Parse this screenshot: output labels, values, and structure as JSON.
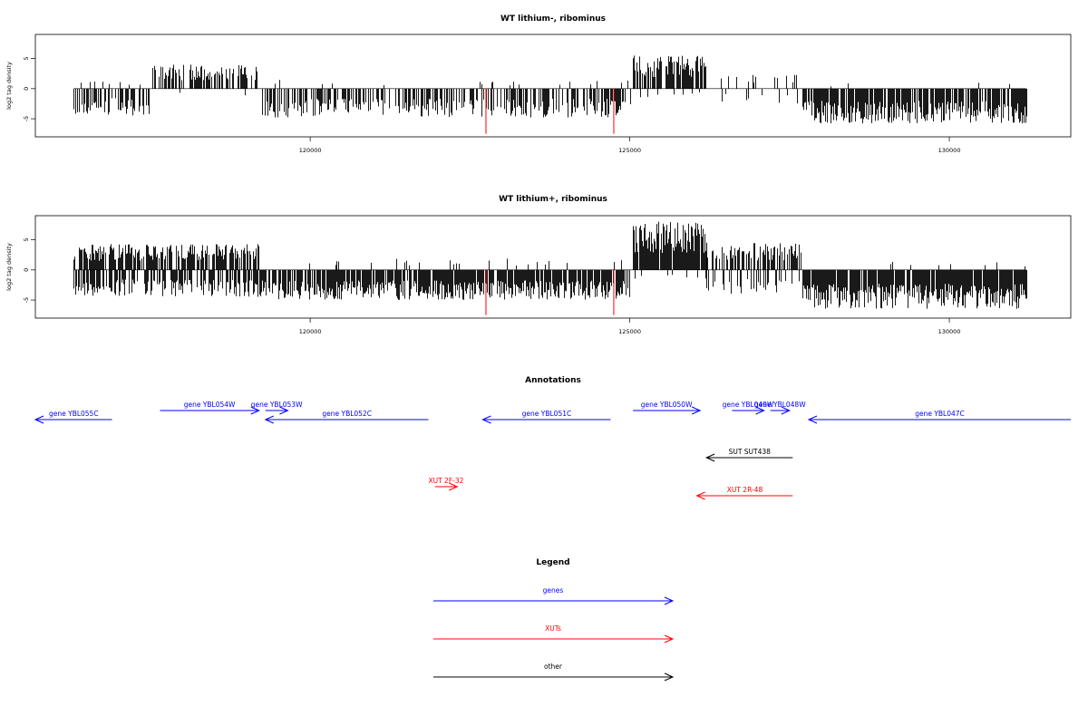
{
  "colors": {
    "gene": "#0000ff",
    "xut": "#ff0000",
    "other": "#000000",
    "bar": "#000000",
    "highlight": "#ff0000"
  },
  "chart_data": [
    {
      "type": "bar",
      "title": "WT lithium-, ribominus",
      "ylabel": "log2 tag density",
      "xlim": [
        115700,
        131900
      ],
      "ylim": [
        -8,
        9
      ],
      "x_ticks": [
        120000,
        125000,
        130000
      ],
      "y_ticks": [
        5,
        0,
        -5
      ],
      "segments": [
        {
          "x_start": 116300,
          "x_end": 117500,
          "pos_max": 1.5,
          "pos_density": 0.15,
          "neg_max": 4.5,
          "neg_density": 0.5
        },
        {
          "x_start": 117500,
          "x_end": 119200,
          "pos_max": 4.0,
          "pos_density": 0.6,
          "neg_max": 1.5,
          "neg_density": 0.05
        },
        {
          "x_start": 119200,
          "x_end": 125000,
          "pos_max": 1.5,
          "pos_density": 0.03,
          "neg_max": 4.8,
          "neg_density": 0.55
        },
        {
          "x_start": 125050,
          "x_end": 126200,
          "pos_max": 5.5,
          "pos_density": 0.75,
          "neg_max": 1.5,
          "neg_density": 0.05
        },
        {
          "x_start": 126200,
          "x_end": 127700,
          "pos_max": 2.5,
          "pos_density": 0.1,
          "neg_max": 2.5,
          "neg_density": 0.1
        },
        {
          "x_start": 127700,
          "x_end": 131200,
          "pos_max": 1.0,
          "pos_density": 0.03,
          "neg_max": 5.8,
          "neg_density": 0.85
        }
      ],
      "highlight_bars": [
        {
          "x": 122750,
          "y": -7.5
        },
        {
          "x": 124750,
          "y": -7.5
        }
      ]
    },
    {
      "type": "bar",
      "title": "WT lithium+, ribominus",
      "ylabel": "log2 tag density",
      "xlim": [
        115700,
        131900
      ],
      "ylim": [
        -8,
        9
      ],
      "x_ticks": [
        120000,
        125000,
        130000
      ],
      "y_ticks": [
        5,
        0,
        -5
      ],
      "segments": [
        {
          "x_start": 116300,
          "x_end": 119200,
          "pos_max": 4.3,
          "pos_density": 0.7,
          "neg_max": 4.5,
          "neg_density": 0.6
        },
        {
          "x_start": 119200,
          "x_end": 125000,
          "pos_max": 2.0,
          "pos_density": 0.05,
          "neg_max": 5.0,
          "neg_density": 0.85
        },
        {
          "x_start": 125050,
          "x_end": 126200,
          "pos_max": 8.0,
          "pos_density": 0.95,
          "neg_max": 1.5,
          "neg_density": 0.05
        },
        {
          "x_start": 126200,
          "x_end": 127700,
          "pos_max": 4.5,
          "pos_density": 0.6,
          "neg_max": 4.0,
          "neg_density": 0.3
        },
        {
          "x_start": 127700,
          "x_end": 131200,
          "pos_max": 1.5,
          "pos_density": 0.03,
          "neg_max": 6.5,
          "neg_density": 0.95
        }
      ],
      "highlight_bars": [
        {
          "x": 122750,
          "y": -7.5
        },
        {
          "x": 124750,
          "y": -7.5
        }
      ]
    }
  ],
  "annotations": {
    "title": "Annotations",
    "xlim": [
      115700,
      131900
    ],
    "items": [
      {
        "label": "gene YBL055C",
        "type": "gene",
        "start": 115700,
        "end": 116900,
        "strand": "-",
        "row": 0
      },
      {
        "label": "gene YBL054W",
        "type": "gene",
        "start": 117650,
        "end": 119200,
        "strand": "+",
        "row": 1
      },
      {
        "label": "gene YBL053W",
        "type": "gene",
        "start": 119300,
        "end": 119650,
        "strand": "+",
        "row": 1
      },
      {
        "label": "gene YBL052C",
        "type": "gene",
        "start": 119300,
        "end": 121850,
        "strand": "-",
        "row": 0
      },
      {
        "label": "gene YBL051C",
        "type": "gene",
        "start": 122700,
        "end": 124700,
        "strand": "-",
        "row": 0
      },
      {
        "label": "gene YBL050W",
        "type": "gene",
        "start": 125050,
        "end": 126100,
        "strand": "+",
        "row": 1
      },
      {
        "label": "gene YBL049W",
        "type": "gene",
        "start": 126600,
        "end": 127100,
        "strand": "+",
        "row": 1
      },
      {
        "label": "gene YBL048W",
        "type": "gene",
        "start": 127200,
        "end": 127500,
        "strand": "+",
        "row": 1
      },
      {
        "label": "gene YBL047C",
        "type": "gene",
        "start": 127800,
        "end": 131900,
        "strand": "-",
        "row": 0
      },
      {
        "label": "SUT SUT438",
        "type": "other",
        "start": 126200,
        "end": 127550,
        "strand": "-",
        "row": 2
      },
      {
        "label": "XUT 2F-32",
        "type": "xut",
        "start": 121950,
        "end": 122300,
        "strand": "+",
        "row": 3
      },
      {
        "label": "XUT 2R-48",
        "type": "xut",
        "start": 126050,
        "end": 127550,
        "strand": "-",
        "row": 4
      }
    ]
  },
  "legend": {
    "title": "Legend",
    "items": [
      {
        "label": "genes",
        "type": "gene"
      },
      {
        "label": "XUTs",
        "type": "xut"
      },
      {
        "label": "other",
        "type": "other"
      }
    ]
  }
}
